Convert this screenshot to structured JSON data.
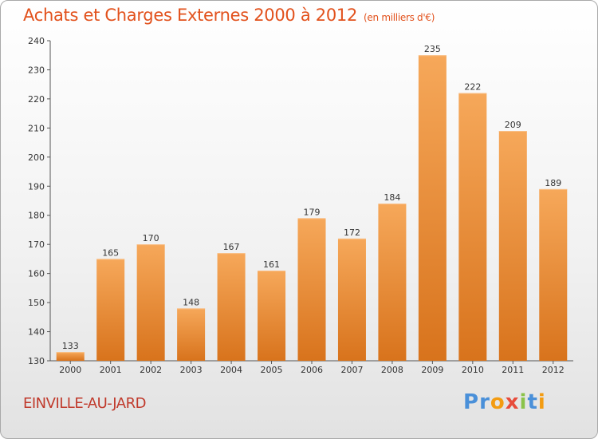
{
  "chart_data": {
    "type": "bar",
    "title": "Achats et Charges Externes 2000 à 2012",
    "subtitle": "(en milliers d'€)",
    "categories": [
      "2000",
      "2001",
      "2002",
      "2003",
      "2004",
      "2005",
      "2006",
      "2007",
      "2008",
      "2009",
      "2010",
      "2011",
      "2012"
    ],
    "values": [
      133,
      165,
      170,
      148,
      167,
      161,
      179,
      172,
      184,
      235,
      222,
      209,
      189
    ],
    "ylim": [
      130,
      240
    ],
    "yticks": [
      130,
      140,
      150,
      160,
      170,
      180,
      190,
      200,
      210,
      220,
      230,
      240
    ],
    "grid": false,
    "bar_color": "#f08a2c",
    "bar_color_light": "#f6a85a",
    "bar_color_dark": "#d8731c"
  },
  "footer": {
    "place": "EINVILLE-AU-JARD",
    "logo_letters": [
      {
        "ch": "P",
        "color": "#4a90d9"
      },
      {
        "ch": "r",
        "color": "#4a90d9"
      },
      {
        "ch": "o",
        "color": "#f39c12"
      },
      {
        "ch": "x",
        "color": "#e74c3c"
      },
      {
        "ch": "i",
        "color": "#8bc34a"
      },
      {
        "ch": "t",
        "color": "#4a90d9"
      },
      {
        "ch": "i",
        "color": "#f39c12"
      }
    ]
  }
}
